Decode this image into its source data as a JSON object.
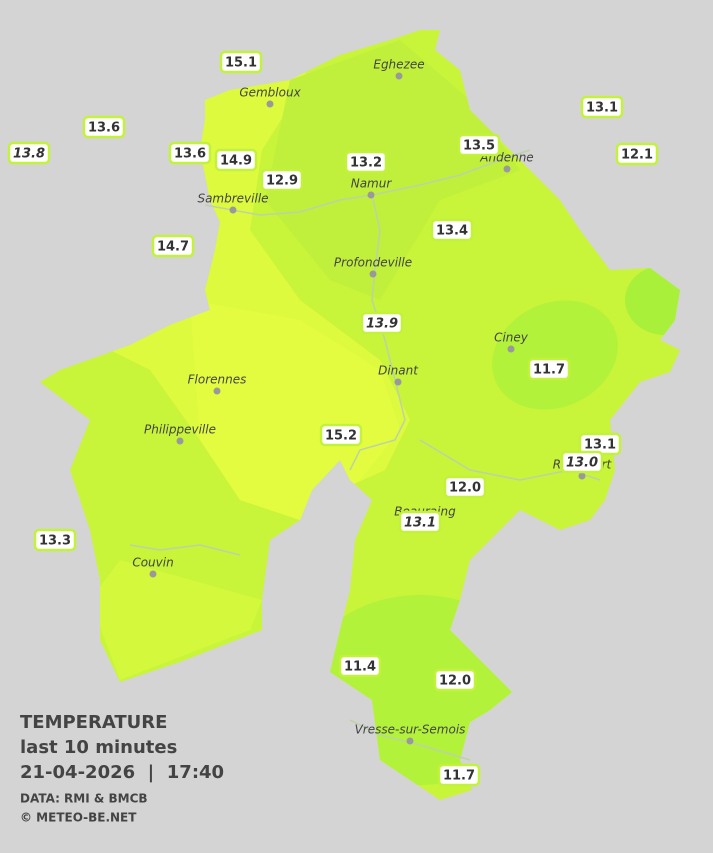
{
  "legend": {
    "title": "TEMPERATURE",
    "subtitle": "last 10 minutes",
    "datetime": "21-04-2026  |  17:40",
    "source": "DATA: RMI & BMCB",
    "credit": "© METEO-BE.NET"
  },
  "towns": [
    {
      "name": "Eghezee"
    },
    {
      "name": "Gembloux"
    },
    {
      "name": "Andenne"
    },
    {
      "name": "Namur"
    },
    {
      "name": "Sambreville"
    },
    {
      "name": "Profondeville"
    },
    {
      "name": "Ciney"
    },
    {
      "name": "Dinant"
    },
    {
      "name": "Florennes"
    },
    {
      "name": "Philippeville"
    },
    {
      "name": "Rochefort"
    },
    {
      "name": "Beauraing"
    },
    {
      "name": "Couvin"
    },
    {
      "name": "Vresse-sur-Semois"
    }
  ],
  "stations": [
    {
      "value": "15.1"
    },
    {
      "value": "13.6"
    },
    {
      "value": "13.8",
      "italic": true
    },
    {
      "value": "13.6"
    },
    {
      "value": "14.9"
    },
    {
      "value": "12.9"
    },
    {
      "value": "13.2"
    },
    {
      "value": "13.5"
    },
    {
      "value": "13.1"
    },
    {
      "value": "12.1"
    },
    {
      "value": "14.7"
    },
    {
      "value": "13.4"
    },
    {
      "value": "13.9",
      "italic": true
    },
    {
      "value": "11.7"
    },
    {
      "value": "15.2"
    },
    {
      "value": "13.1"
    },
    {
      "value": "13.0",
      "italic": true
    },
    {
      "value": "12.0"
    },
    {
      "value": "13.1",
      "italic": true
    },
    {
      "value": "13.3"
    },
    {
      "value": "11.4"
    },
    {
      "value": "12.0"
    },
    {
      "value": "11.7"
    }
  ]
}
